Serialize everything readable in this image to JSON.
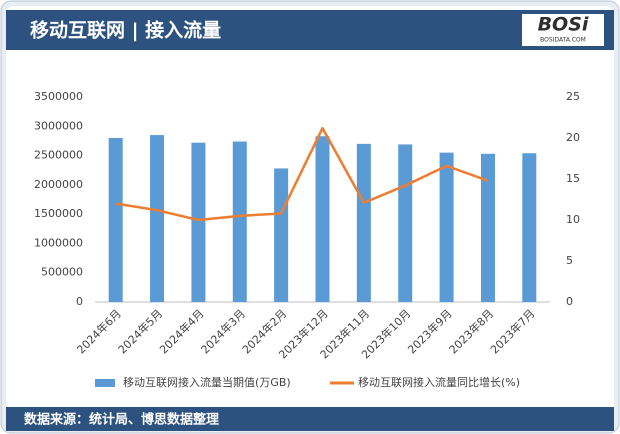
{
  "logo": {
    "name": "BOSi",
    "url": "BOSIDATA.COM"
  },
  "chart_data": {
    "type": "bar-line",
    "title": "移动互联网 | 接入流量",
    "source": "数据来源：统计局、博思数据整理",
    "categories": [
      "2024年6月",
      "2024年5月",
      "2024年4月",
      "2024年3月",
      "2024年2月",
      "2023年12月",
      "2023年11月",
      "2023年10月",
      "2023年9月",
      "2023年8月",
      "2023年7月"
    ],
    "series": [
      {
        "name": "移动互联网接入流量当期值(万GB)",
        "type": "bar",
        "color": "#5b9bd5",
        "values": [
          2800000,
          2850000,
          2720000,
          2740000,
          2280000,
          2830000,
          2700000,
          2690000,
          2550000,
          2530000,
          2540000
        ]
      },
      {
        "name": "移动互联网接入流量同比增长(%)",
        "type": "line",
        "axis": "y2",
        "color": "#ed7d31",
        "values": [
          12,
          11.2,
          10,
          10.5,
          10.8,
          21.2,
          12.1,
          14.2,
          16.6,
          14.8,
          null
        ]
      }
    ],
    "ylim": [
      0,
      3500000
    ],
    "yticks": [
      0,
      500000,
      1000000,
      1500000,
      2000000,
      2500000,
      3000000,
      3500000
    ],
    "y2lim": [
      0,
      25
    ],
    "y2ticks": [
      0,
      5,
      10,
      15,
      20,
      25
    ],
    "legend": "bottom"
  }
}
